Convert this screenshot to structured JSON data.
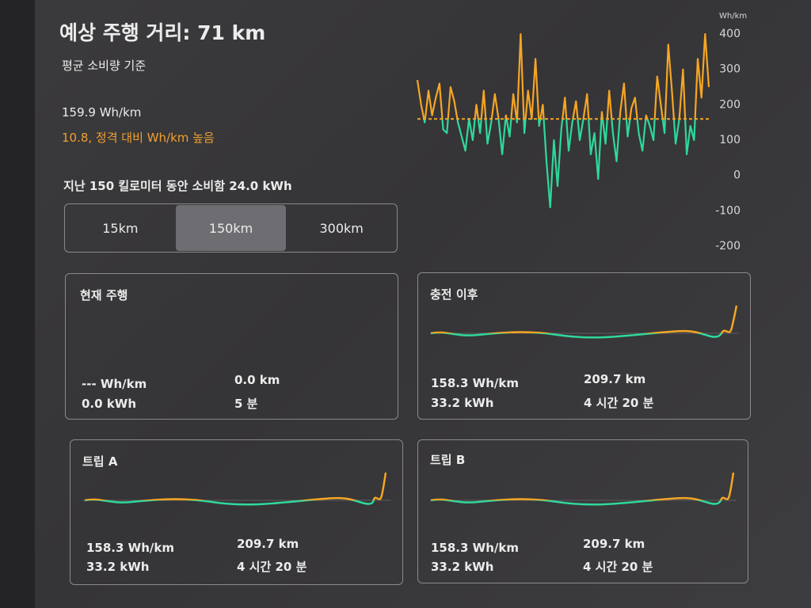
{
  "header": {
    "title": "예상 주행 거리: 71 km",
    "subtitle": "평균 소비량 기준"
  },
  "summary": {
    "average": "159.9 Wh/km",
    "comparison": "10.8, 정격 대비 Wh/km 높음",
    "consumed": "지난 150 킬로미터 동안 소비함 24.0 kWh"
  },
  "distance_tabs": {
    "options": [
      "15km",
      "150km",
      "300km"
    ],
    "selected": 1
  },
  "consumption_chart": {
    "unit": "Wh/km",
    "ylim": [
      -200,
      400
    ],
    "yticks": [
      400,
      300,
      200,
      100,
      0,
      -100,
      -200
    ],
    "average_line": 159.9,
    "colors": {
      "above": "#f5a623",
      "below": "#2fd89a",
      "average": "#f5a623"
    },
    "values": [
      270,
      200,
      150,
      240,
      170,
      220,
      260,
      130,
      120,
      250,
      210,
      150,
      110,
      70,
      160,
      100,
      200,
      120,
      240,
      90,
      150,
      230,
      160,
      60,
      170,
      110,
      230,
      150,
      400,
      120,
      240,
      160,
      330,
      140,
      200,
      40,
      -90,
      100,
      -30,
      130,
      220,
      70,
      150,
      210,
      100,
      160,
      230,
      60,
      120,
      -10,
      180,
      90,
      240,
      120,
      40,
      180,
      260,
      110,
      190,
      220,
      120,
      70,
      170,
      140,
      100,
      280,
      200,
      120,
      370,
      240,
      90,
      160,
      300,
      60,
      140,
      100,
      330,
      220,
      400,
      250
    ]
  },
  "cards": [
    {
      "title": "현재 주행",
      "efficiency": "--- Wh/km",
      "energy": "0.0 kWh",
      "distance": "0.0 km",
      "duration": "5 분"
    },
    {
      "title": "충전 이후",
      "efficiency": "158.3 Wh/km",
      "energy": "33.2 kWh",
      "distance": "209.7 km",
      "duration": "4 시간 20 분"
    },
    {
      "title": "트립 A",
      "efficiency": "158.3 Wh/km",
      "energy": "33.2 kWh",
      "distance": "209.7 km",
      "duration": "4 시간 20 분"
    },
    {
      "title": "트립 B",
      "efficiency": "158.3 Wh/km",
      "energy": "33.2 kWh",
      "distance": "209.7 km",
      "duration": "4 시간 20 분"
    }
  ]
}
